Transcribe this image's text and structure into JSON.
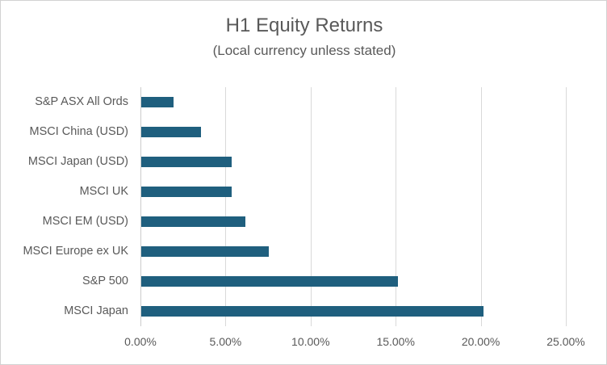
{
  "chart_data": {
    "type": "bar",
    "orientation": "horizontal",
    "title": "H1 Equity Returns",
    "subtitle": "(Local currency unless stated)",
    "categories": [
      "S&P ASX All Ords",
      "MSCI China (USD)",
      "MSCI Japan (USD)",
      "MSCI UK",
      "MSCI EM (USD)",
      "MSCI Europe ex UK",
      "S&P 500",
      "MSCI Japan"
    ],
    "values": [
      1.9,
      3.5,
      5.3,
      5.3,
      6.1,
      7.5,
      15.1,
      20.1
    ],
    "value_unit": "percent",
    "xlabel": "",
    "ylabel": "",
    "xlim": [
      0,
      25
    ],
    "x_ticks": [
      0,
      5,
      10,
      15,
      20,
      25
    ],
    "x_tick_labels": [
      "0.00%",
      "5.00%",
      "10.00%",
      "15.00%",
      "20.00%",
      "25.00%"
    ],
    "grid": true,
    "legend": false,
    "colors": {
      "bar": "#1f5f7e",
      "gridline": "#d9d9d9",
      "axis_line": "#cccccc",
      "text": "#595959",
      "background": "#ffffff",
      "border": "#d2d2d2"
    }
  }
}
